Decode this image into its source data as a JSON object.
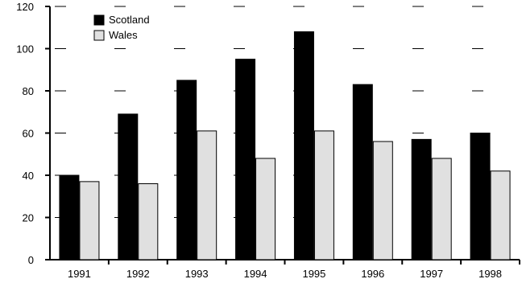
{
  "chart_data": {
    "type": "bar",
    "categories": [
      "1991",
      "1992",
      "1993",
      "1994",
      "1995",
      "1996",
      "1997",
      "1998"
    ],
    "series": [
      {
        "name": "Scotland",
        "values": [
          40,
          69,
          85,
          95,
          108,
          83,
          57,
          60
        ],
        "color": "#000000"
      },
      {
        "name": "Wales",
        "values": [
          37,
          36,
          61,
          48,
          61,
          56,
          48,
          42
        ],
        "color": "#e0e0e0"
      }
    ],
    "ylim": [
      0,
      120
    ],
    "yticks": [
      0,
      20,
      40,
      60,
      80,
      100,
      120
    ],
    "ytick_labels": [
      "0",
      "20",
      "40",
      "60",
      "80",
      "100",
      "120"
    ],
    "grid": "dashed horizontal at each y tick",
    "legend": "top-left"
  }
}
